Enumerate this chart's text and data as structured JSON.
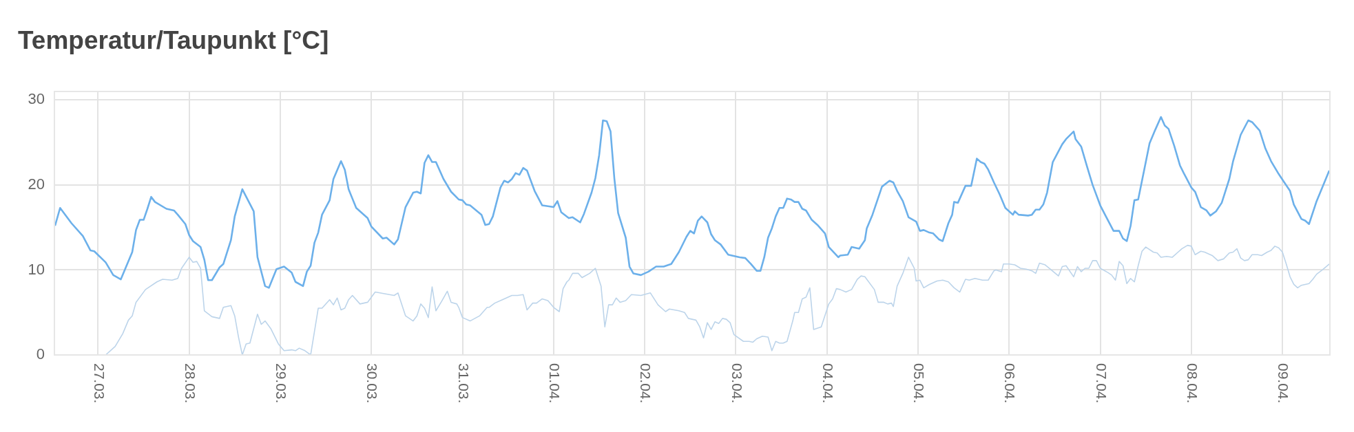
{
  "chart_data": {
    "type": "line",
    "title": "Temperatur/Taupunkt [°C]",
    "xlim": [
      "--03-26T12:30",
      "--04-09T12:30"
    ],
    "xticks": [
      {
        "value": "--03-27",
        "label": "27.03."
      },
      {
        "value": "--03-28",
        "label": "28.03."
      },
      {
        "value": "--03-29",
        "label": "29.03."
      },
      {
        "value": "--03-30",
        "label": "30.03."
      },
      {
        "value": "--03-31",
        "label": "31.03."
      },
      {
        "value": "--04-01",
        "label": "01.04."
      },
      {
        "value": "--04-02",
        "label": "02.04."
      },
      {
        "value": "--04-03",
        "label": "03.04."
      },
      {
        "value": "--04-04",
        "label": "04.04."
      },
      {
        "value": "--04-05",
        "label": "05.04."
      },
      {
        "value": "--04-06",
        "label": "06.04."
      },
      {
        "value": "--04-07",
        "label": "07.04."
      },
      {
        "value": "--04-08",
        "label": "08.04."
      },
      {
        "value": "--04-09",
        "label": "09.04."
      }
    ],
    "ylim": [
      0,
      31
    ],
    "yticks": [
      0,
      10,
      20,
      30
    ],
    "grid": true,
    "series": [
      {
        "color": "#6cb0ea",
        "x": [
          "--03-26T12:40",
          "--03-26T14:00",
          "--03-26T17:00",
          "--03-26T20:00",
          "--03-26T22:00",
          "--03-26T23:00",
          "--03-27T02:00",
          "--03-27T04:00",
          "--03-27T06:00",
          "--03-27T09:00",
          "--03-27T10:00",
          "--03-27T11:00",
          "--03-27T12:00",
          "--03-27T13:00",
          "--03-27T14:00",
          "--03-27T15:00",
          "--03-27T18:00",
          "--03-27T20:00",
          "--03-27T21:00",
          "--03-27T23:00",
          "--03-28T00:00",
          "--03-28T01:00",
          "--03-28T03:00",
          "--03-28T04:00",
          "--03-28T05:00",
          "--03-28T06:00",
          "--03-28T08:00",
          "--03-28T09:00",
          "--03-28T11:00",
          "--03-28T12:00",
          "--03-28T14:00",
          "--03-28T17:00",
          "--03-28T18:00",
          "--03-28T20:00",
          "--03-28T21:00",
          "--03-28T23:00",
          "--03-29T01:00",
          "--03-29T03:00",
          "--03-29T04:00",
          "--03-29T06:00",
          "--03-29T07:00",
          "--03-29T08:00",
          "--03-29T09:00",
          "--03-29T10:00",
          "--03-29T11:00",
          "--03-29T13:00",
          "--03-29T14:00",
          "--03-29T16:00",
          "--03-29T17:00",
          "--03-29T18:00",
          "--03-29T20:00",
          "--03-29T23:00",
          "--03-30T00:00",
          "--03-30T03:00",
          "--03-30T04:00",
          "--03-30T06:00",
          "--03-30T07:00",
          "--03-30T09:00",
          "--03-30T11:00",
          "--03-30T12:00",
          "--03-30T13:00",
          "--03-30T14:00",
          "--03-30T15:00",
          "--03-30T16:00",
          "--03-30T17:00",
          "--03-30T19:00",
          "--03-30T21:00",
          "--03-30T23:00",
          "--03-31T00:00",
          "--03-31T01:00",
          "--03-31T02:00",
          "--03-31T05:00",
          "--03-31T06:00",
          "--03-31T07:00",
          "--03-31T08:00",
          "--03-31T10:00",
          "--03-31T11:00",
          "--03-31T12:00",
          "--03-31T13:00",
          "--03-31T14:00",
          "--03-31T15:00",
          "--03-31T16:00",
          "--03-31T17:00",
          "--03-31T19:00",
          "--03-31T21:00",
          "--04-01T00:00",
          "--04-01T01:00",
          "--04-01T02:00",
          "--04-01T04:00",
          "--04-01T05:00",
          "--04-01T07:00",
          "--04-01T08:00",
          "--04-01T10:00",
          "--04-01T11:00",
          "--04-01T12:00",
          "--04-01T13:00",
          "--04-01T14:00",
          "--04-01T15:00",
          "--04-01T16:00",
          "--04-01T17:00",
          "--04-01T19:00",
          "--04-01T20:00",
          "--04-01T21:00",
          "--04-01T23:00",
          "--04-02T01:00",
          "--04-02T03:00",
          "--04-02T05:00",
          "--04-02T07:00",
          "--04-02T09:00",
          "--04-02T11:00",
          "--04-02T12:00",
          "--04-02T13:00",
          "--04-02T14:00",
          "--04-02T15:00",
          "--04-02T16:30",
          "--04-02T17:30",
          "--04-02T18:30",
          "--04-02T20:00",
          "--04-02T22:00",
          "--04-03T01:00",
          "--04-03T02:30",
          "--04-03T04:00",
          "--04-03T05:30",
          "--04-03T06:30",
          "--04-03T07:30",
          "--04-03T08:30",
          "--04-03T09:30",
          "--04-03T10:30",
          "--04-03T11:30",
          "--04-03T12:30",
          "--04-03T13:30",
          "--04-03T14:30",
          "--04-03T15:30",
          "--04-03T16:30",
          "--04-03T17:30",
          "--04-03T18:30",
          "--04-03T20:00",
          "--04-03T21:30",
          "--04-03T23:30",
          "--04-04T00:30",
          "--04-04T03:00",
          "--04-04T03:30",
          "--04-04T05:30",
          "--04-04T06:30",
          "--04-04T08:30",
          "--04-04T10:00",
          "--04-04T10:30",
          "--04-04T12:00",
          "--04-04T14:30",
          "--04-04T16:30",
          "--04-04T17:30",
          "--04-04T18:30",
          "--04-04T20:00",
          "--04-04T21:30",
          "--04-04T23:30",
          "--04-05T00:30",
          "--04-05T01:30",
          "--04-05T03:00",
          "--04-05T04:00",
          "--04-05T05:30",
          "--04-05T06:30",
          "--04-05T08:00",
          "--04-05T09:00",
          "--04-05T09:30",
          "--04-05T10:30",
          "--04-05T12:30",
          "--04-05T14:00",
          "--04-05T15:30",
          "--04-05T16:30",
          "--04-05T17:30",
          "--04-05T18:30",
          "--04-05T20:00",
          "--04-05T21:30",
          "--04-05T23:00",
          "--04-06T01:00",
          "--04-06T01:30",
          "--04-06T02:30",
          "--04-06T05:00",
          "--04-06T06:00",
          "--04-06T07:00",
          "--04-06T08:00",
          "--04-06T09:00",
          "--04-06T10:00",
          "--04-06T11:30",
          "--04-06T14:00",
          "--04-06T15:00",
          "--04-06T17:00",
          "--04-06T17:30",
          "--04-06T19:00",
          "--04-06T20:30",
          "--04-06T22:00",
          "--04-07T00:00",
          "--04-07T01:30",
          "--04-07T03:30",
          "--04-07T05:00",
          "--04-07T06:00",
          "--04-07T07:00",
          "--04-07T08:00",
          "--04-07T09:00",
          "--04-07T10:00",
          "--04-07T11:30",
          "--04-07T13:00",
          "--04-07T14:30",
          "--04-07T16:00",
          "--04-07T17:00",
          "--04-07T18:00",
          "--04-07T19:30",
          "--04-07T21:00",
          "--04-07T22:00",
          "--04-08T00:00",
          "--04-08T01:00",
          "--04-08T02:30",
          "--04-08T04:00",
          "--04-08T05:00",
          "--04-08T06:30",
          "--04-08T08:00",
          "--04-08T10:00",
          "--04-08T11:00",
          "--04-08T13:00",
          "--04-08T15:00",
          "--04-08T16:00",
          "--04-08T18:00",
          "--04-08T19:30",
          "--04-08T21:00",
          "--04-08T23:00",
          "--04-09T00:30",
          "--04-09T02:00",
          "--04-09T03:00",
          "--04-09T05:00",
          "--04-09T06:00",
          "--04-09T07:00",
          "--04-09T09:00",
          "--04-09T10:30",
          "--04-09T12:20"
        ],
        "values": [
          15.2,
          17.3,
          15.5,
          14.0,
          12.3,
          12.2,
          10.9,
          9.4,
          8.9,
          12.1,
          14.7,
          15.9,
          15.9,
          17.2,
          18.6,
          18.0,
          17.2,
          17.0,
          16.5,
          15.4,
          14.1,
          13.4,
          12.7,
          11.2,
          8.8,
          8.8,
          10.3,
          10.7,
          13.5,
          16.3,
          19.5,
          16.9,
          11.5,
          8.1,
          7.9,
          10.1,
          10.4,
          9.7,
          8.6,
          8.1,
          9.8,
          10.5,
          13.2,
          14.4,
          16.5,
          18.2,
          20.7,
          22.8,
          21.8,
          19.5,
          17.3,
          16.1,
          15.1,
          13.7,
          13.8,
          13.0,
          13.6,
          17.4,
          19.1,
          19.2,
          19.0,
          22.6,
          23.5,
          22.7,
          22.7,
          20.7,
          19.2,
          18.3,
          18.2,
          17.7,
          17.6,
          16.5,
          15.3,
          15.4,
          16.3,
          19.7,
          20.5,
          20.3,
          20.7,
          21.4,
          21.2,
          22.0,
          21.7,
          19.3,
          17.6,
          17.4,
          18.1,
          16.8,
          16.1,
          16.2,
          15.6,
          16.6,
          19.1,
          20.8,
          23.5,
          27.6,
          27.5,
          26.3,
          20.8,
          16.7,
          13.8,
          10.4,
          9.6,
          9.4,
          9.8,
          10.4,
          10.4,
          10.7,
          12.1,
          13.9,
          14.6,
          14.3,
          15.8,
          16.3,
          15.6,
          14.2,
          13.5,
          13.0,
          11.8,
          11.5,
          11.4,
          10.7,
          9.9,
          9.9,
          11.5,
          13.8,
          14.9,
          16.3,
          17.3,
          17.3,
          18.4,
          18.3,
          18.0,
          18.0,
          17.2,
          17.0,
          15.9,
          15.3,
          14.3,
          12.7,
          11.5,
          11.7,
          11.8,
          12.7,
          12.5,
          13.5,
          14.9,
          16.5,
          19.8,
          20.5,
          20.3,
          19.3,
          18.1,
          16.2,
          15.7,
          14.6,
          14.7,
          14.4,
          14.3,
          13.6,
          13.4,
          15.5,
          16.5,
          18.0,
          17.9,
          19.9,
          19.9,
          23.1,
          22.7,
          22.5,
          21.8,
          20.3,
          18.9,
          17.3,
          16.5,
          16.9,
          16.5,
          16.4,
          16.5,
          17.1,
          17.1,
          17.7,
          19.1,
          22.7,
          24.8,
          25.4,
          26.3,
          25.4,
          24.5,
          22.2,
          20.0,
          17.6,
          16.3,
          14.6,
          14.6,
          13.7,
          13.4,
          15.2,
          18.2,
          18.3,
          21.6,
          24.9,
          26.5,
          28.0,
          27.0,
          26.6,
          24.6,
          22.3,
          21.4,
          19.7,
          19.2,
          17.4,
          17.0,
          16.4,
          16.9,
          17.9,
          20.7,
          22.8,
          25.9,
          27.6,
          27.4,
          26.4,
          24.3,
          22.8,
          21.3,
          20.3,
          19.3,
          17.7,
          16.0,
          15.8,
          15.4,
          18.1,
          19.7,
          21.7
        ]
      },
      {
        "color": "#bcd4ea",
        "x": [
          "--03-27T02:00",
          "--03-27T04:30",
          "--03-27T06:30",
          "--03-27T08:00",
          "--03-27T09:00",
          "--03-27T10:00",
          "--03-27T12:30",
          "--03-27T15:30",
          "--03-27T17:00",
          "--03-27T19:30",
          "--03-27T21:00",
          "--03-27T22:00",
          "--03-28T00:00",
          "--03-28T01:00",
          "--03-28T02:00",
          "--03-28T03:00",
          "--03-28T04:00",
          "--03-28T06:00",
          "--03-28T08:00",
          "--03-28T09:00",
          "--03-28T11:00",
          "--03-28T12:00",
          "--03-28T13:00",
          "--03-28T14:00",
          "--03-28T15:00",
          "--03-28T16:00",
          "--03-28T18:00",
          "--03-28T19:00",
          "--03-28T20:00",
          "--03-28T21:30",
          "--03-28T23:30",
          "--03-29T01:00",
          "--03-29T03:00",
          "--03-29T04:00",
          "--03-29T05:00",
          "--03-29T06:30",
          "--03-29T08:00",
          "--03-29T10:00",
          "--03-29T11:00",
          "--03-29T13:00",
          "--03-29T14:00",
          "--03-29T15:00",
          "--03-29T16:00",
          "--03-29T17:00",
          "--03-29T18:00",
          "--03-29T19:00",
          "--03-29T21:00",
          "--03-29T23:00",
          "--03-30T01:00",
          "--03-30T03:30",
          "--03-30T06:00",
          "--03-30T07:00",
          "--03-30T09:00",
          "--03-30T11:00",
          "--03-30T12:00",
          "--03-30T13:00",
          "--03-30T14:00",
          "--03-30T15:00",
          "--03-30T16:00",
          "--03-30T17:00",
          "--03-30T18:30",
          "--03-30T20:00",
          "--03-30T21:00",
          "--03-30T22:30",
          "--03-30T23:00",
          "--03-31T00:00",
          "--03-31T02:00",
          "--03-31T04:30",
          "--03-31T06:30",
          "--03-31T07:00",
          "--03-31T08:30",
          "--03-31T10:30",
          "--03-31T13:00",
          "--03-31T14:30",
          "--03-31T16:00",
          "--03-31T17:00",
          "--03-31T18:30",
          "--03-31T19:30",
          "--03-31T21:00",
          "--03-31T22:30",
          "--04-01T00:00",
          "--04-01T01:30",
          "--04-01T02:30",
          "--04-01T03:30",
          "--04-01T04:00",
          "--04-01T05:00",
          "--04-01T06:30",
          "--04-01T07:30",
          "--04-01T09:30",
          "--04-01T11:00",
          "--04-01T12:30",
          "--04-01T13:30",
          "--04-01T14:30",
          "--04-01T15:30",
          "--04-01T16:30",
          "--04-01T17:30",
          "--04-01T19:00",
          "--04-01T20:30",
          "--04-01T23:00",
          "--04-02T01:30",
          "--04-02T03:30",
          "--04-02T05:30",
          "--04-02T06:30",
          "--04-02T09:00",
          "--04-02T10:30",
          "--04-02T11:30",
          "--04-02T13:30",
          "--04-02T14:30",
          "--04-02T15:30",
          "--04-02T16:30",
          "--04-02T17:30",
          "--04-02T18:30",
          "--04-02T19:30",
          "--04-02T20:30",
          "--04-02T21:30",
          "--04-02T22:30",
          "--04-02T23:30",
          "--04-03T02:00",
          "--04-03T03:30",
          "--04-03T04:30",
          "--04-03T05:30",
          "--04-03T07:00",
          "--04-03T08:30",
          "--04-03T09:30",
          "--04-03T10:30",
          "--04-03T11:30",
          "--04-03T12:30",
          "--04-03T13:30",
          "--04-03T15:00",
          "--04-03T15:30",
          "--04-03T16:30",
          "--04-03T17:30",
          "--04-03T18:30",
          "--04-03T19:30",
          "--04-03T20:30",
          "--04-03T22:30",
          "--04-04T00:30",
          "--04-04T01:30",
          "--04-04T02:30",
          "--04-04T03:30",
          "--04-04T05:00",
          "--04-04T06:30",
          "--04-04T08:00",
          "--04-04T09:00",
          "--04-04T10:00",
          "--04-04T12:30",
          "--04-04T13:30",
          "--04-04T15:00",
          "--04-04T16:00",
          "--04-04T17:00",
          "--04-04T17:30",
          "--04-04T18:30",
          "--04-04T20:00",
          "--04-04T21:30",
          "--04-04T23:00",
          "--04-04T23:30",
          "--04-05T00:30",
          "--04-05T01:30",
          "--04-05T03:00",
          "--04-05T05:00",
          "--04-05T06:30",
          "--04-05T08:00",
          "--04-05T09:30",
          "--04-05T11:00",
          "--04-05T12:30",
          "--04-05T13:30",
          "--04-05T15:00",
          "--04-05T17:00",
          "--04-05T18:30",
          "--04-05T20:00",
          "--04-05T20:30",
          "--04-05T22:00",
          "--04-05T22:30",
          "--04-06T00:00",
          "--04-06T01:30",
          "--04-06T03:00",
          "--04-06T04:30",
          "--04-06T06:00",
          "--04-06T07:00",
          "--04-06T08:00",
          "--04-06T09:30",
          "--04-06T13:00",
          "--04-06T14:00",
          "--04-06T15:00",
          "--04-06T17:00",
          "--04-06T18:00",
          "--04-06T19:00",
          "--04-06T20:00",
          "--04-06T21:00",
          "--04-06T22:00",
          "--04-06T23:00",
          "--04-07T00:00",
          "--04-07T02:00",
          "--04-07T03:00",
          "--04-07T04:00",
          "--04-07T05:00",
          "--04-07T06:00",
          "--04-07T07:00",
          "--04-07T08:00",
          "--04-07T09:00",
          "--04-07T10:00",
          "--04-07T11:00",
          "--04-07T12:00",
          "--04-07T14:00",
          "--04-07T15:00",
          "--04-07T16:00",
          "--04-07T17:30",
          "--04-07T19:00",
          "--04-07T20:30",
          "--04-07T21:30",
          "--04-07T23:00",
          "--04-08T00:00",
          "--04-08T01:00",
          "--04-08T02:30",
          "--04-08T03:30",
          "--04-08T05:30",
          "--04-08T07:00",
          "--04-08T08:30",
          "--04-08T10:00",
          "--04-08T11:00",
          "--04-08T12:00",
          "--04-08T13:00",
          "--04-08T14:00",
          "--04-08T15:00",
          "--04-08T16:00",
          "--04-08T17:30",
          "--04-08T18:30",
          "--04-08T20:00",
          "--04-08T21:00",
          "--04-08T22:00",
          "--04-08T23:00",
          "--04-09T00:00",
          "--04-09T01:00",
          "--04-09T02:00",
          "--04-09T03:00",
          "--04-09T04:00",
          "--04-09T05:00",
          "--04-09T07:00",
          "--04-09T08:00",
          "--04-09T09:00",
          "--04-09T10:30",
          "--04-09T12:20"
        ],
        "values": [
          0.0,
          1.0,
          2.5,
          4.1,
          4.6,
          6.2,
          7.7,
          8.6,
          8.9,
          8.8,
          9.0,
          10.2,
          11.5,
          10.9,
          11.0,
          10.2,
          5.2,
          4.5,
          4.3,
          5.6,
          5.8,
          4.6,
          2.1,
          0.0,
          1.3,
          1.4,
          4.8,
          3.6,
          4.0,
          3.1,
          1.3,
          0.5,
          0.6,
          0.5,
          0.8,
          0.5,
          0.0,
          5.5,
          5.5,
          6.5,
          5.9,
          6.7,
          5.3,
          5.5,
          6.5,
          7.0,
          6.0,
          6.2,
          7.4,
          7.2,
          7.0,
          7.3,
          4.6,
          4.0,
          4.6,
          6.0,
          5.5,
          4.4,
          8.0,
          5.2,
          6.3,
          7.5,
          6.2,
          6.0,
          5.6,
          4.4,
          4.0,
          4.6,
          5.6,
          5.6,
          6.1,
          6.5,
          7.0,
          7.0,
          7.1,
          5.3,
          6.1,
          6.1,
          6.6,
          6.4,
          5.6,
          5.1,
          7.8,
          8.6,
          8.8,
          9.6,
          9.6,
          9.1,
          9.6,
          10.2,
          8.1,
          3.3,
          5.9,
          5.9,
          6.7,
          6.2,
          6.4,
          7.1,
          7.0,
          7.3,
          5.9,
          5.1,
          5.4,
          5.2,
          5.0,
          4.3,
          4.1,
          3.3,
          2.0,
          3.8,
          3.0,
          3.9,
          3.7,
          4.3,
          4.2,
          3.8,
          2.4,
          1.6,
          1.6,
          1.5,
          1.9,
          2.2,
          2.1,
          0.5,
          1.6,
          1.4,
          1.4,
          1.6,
          4.0,
          5.0,
          5.0,
          6.6,
          6.8,
          7.9,
          3.0,
          3.3,
          6.0,
          6.6,
          7.8,
          7.7,
          7.4,
          7.7,
          8.9,
          9.3,
          9.2,
          7.7,
          6.2,
          6.2,
          6.0,
          6.1,
          5.7,
          8.1,
          9.6,
          11.5,
          10.2,
          8.7,
          8.8,
          7.9,
          8.3,
          8.7,
          8.8,
          8.6,
          7.9,
          7.4,
          8.9,
          8.8,
          9.0,
          8.8,
          8.8,
          9.9,
          10.0,
          9.8,
          10.7,
          10.7,
          10.6,
          10.2,
          10.1,
          9.9,
          9.6,
          10.8,
          10.6,
          9.3,
          10.4,
          10.5,
          9.2,
          10.4,
          9.8,
          10.2,
          10.2,
          11.1,
          11.1,
          10.2,
          9.7,
          9.4,
          8.8,
          11.0,
          10.5,
          8.4,
          9.0,
          8.6,
          10.5,
          12.2,
          12.7,
          12.1,
          12.0,
          11.5,
          11.6,
          11.5,
          12.1,
          12.5,
          12.9,
          12.8,
          11.8,
          12.2,
          12.1,
          11.7,
          11.1,
          11.3,
          12.0,
          12.1,
          12.5,
          11.4,
          11.1,
          11.2,
          11.8,
          11.8,
          11.7,
          12.1,
          12.3,
          12.8,
          12.6,
          12.1,
          10.7,
          9.2,
          8.3,
          7.9,
          8.2,
          8.4,
          8.9,
          9.5,
          10.0,
          10.7
        ]
      }
    ]
  }
}
